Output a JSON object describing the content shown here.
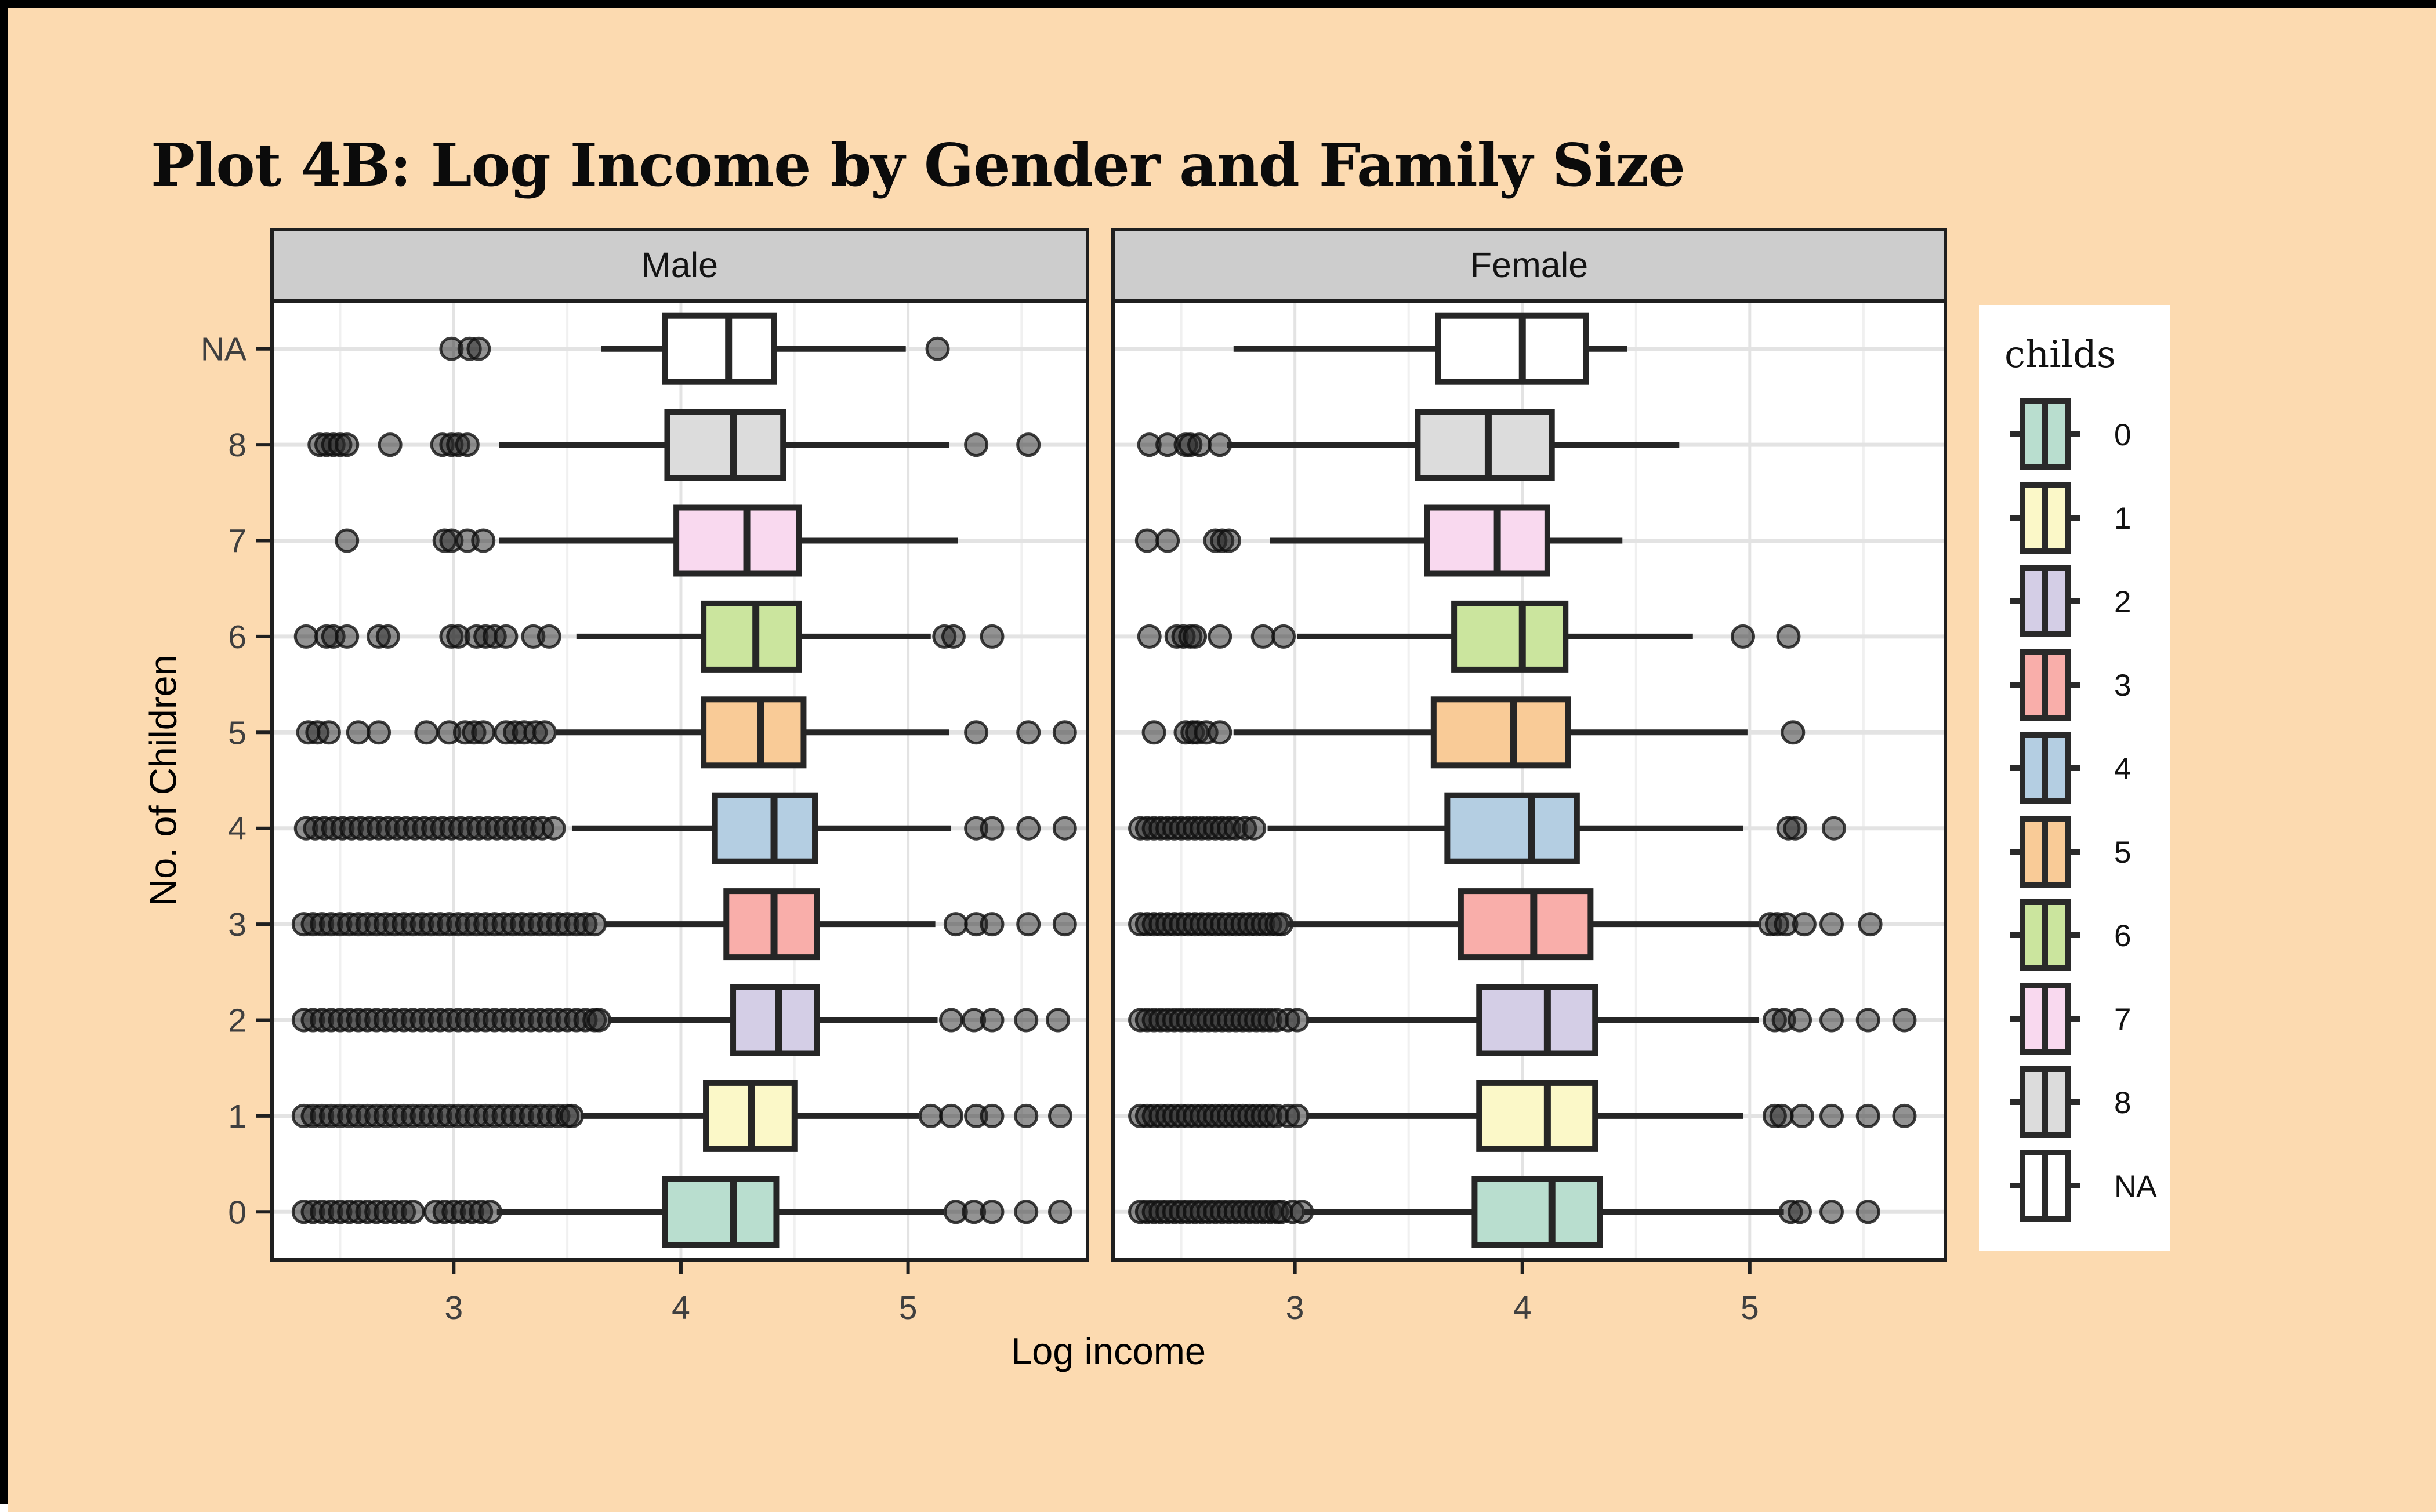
{
  "title": "Plot 4B: Log Income by Gender and Family Size",
  "axes": {
    "x_title": "Log income",
    "y_title": "No. of Children",
    "x_tick_labels": [
      "3",
      "4",
      "5"
    ],
    "y_tick_labels_top_to_bottom": [
      "NA",
      "8",
      "7",
      "6",
      "5",
      "4",
      "3",
      "2",
      "1",
      "0"
    ]
  },
  "legend": {
    "title": "childs",
    "items": [
      {
        "label": "0",
        "color": "#B9DECF"
      },
      {
        "label": "1",
        "color": "#FBF8C8"
      },
      {
        "label": "2",
        "color": "#D4CEE6"
      },
      {
        "label": "3",
        "color": "#F9AEAA"
      },
      {
        "label": "4",
        "color": "#B4CEE2"
      },
      {
        "label": "5",
        "color": "#F9CB97"
      },
      {
        "label": "6",
        "color": "#CBE59E"
      },
      {
        "label": "7",
        "color": "#F9D9EF"
      },
      {
        "label": "8",
        "color": "#DCDCDC"
      },
      {
        "label": "NA",
        "color": "#FFFFFF"
      }
    ]
  },
  "style_colors": {
    "background": "#FCDAB0",
    "outer_border": "#000000",
    "panel_bg": "#FFFFFF",
    "panel_border": "#1F1F1F",
    "strip_fill": "#CDCDCD",
    "grid_major": "#E3E3E3",
    "grid_minor": "#F0F0F0",
    "box_stroke": "#262626",
    "tick_color": "#1F1F1F"
  },
  "chart_data": {
    "type": "boxplot",
    "orientation": "horizontal",
    "xlabel": "Log income",
    "ylabel": "No. of Children",
    "x_major_ticks": [
      3,
      4,
      5
    ],
    "x_minor_ticks": [
      2.5,
      3.5,
      4.5,
      5.5
    ],
    "categories_top_to_bottom": [
      "NA",
      "8",
      "7",
      "6",
      "5",
      "4",
      "3",
      "2",
      "1",
      "0"
    ],
    "facets": [
      {
        "name": "Male",
        "xlim": [
          2.2,
          5.79
        ],
        "rows": [
          {
            "childs": "NA",
            "whisker_lo": 3.65,
            "q1": 3.93,
            "median": 4.21,
            "q3": 4.41,
            "whisker_hi": 4.99,
            "outliers_low": [
              2.99,
              3.07,
              3.11
            ],
            "outliers_high": [
              5.13
            ]
          },
          {
            "childs": "8",
            "whisker_lo": 3.2,
            "q1": 3.94,
            "median": 4.23,
            "q3": 4.45,
            "whisker_hi": 5.18,
            "outliers_low": [
              2.41,
              2.44,
              2.47,
              2.5,
              2.53,
              2.72,
              2.95,
              2.99,
              3.02,
              3.06
            ],
            "outliers_high": [
              5.3,
              5.53
            ]
          },
          {
            "childs": "7",
            "whisker_lo": 3.2,
            "q1": 3.98,
            "median": 4.29,
            "q3": 4.52,
            "whisker_hi": 5.22,
            "outliers_low": [
              2.53,
              2.96,
              2.99,
              3.06,
              3.13
            ],
            "outliers_high": []
          },
          {
            "childs": "6",
            "whisker_lo": 3.54,
            "q1": 4.1,
            "median": 4.33,
            "q3": 4.52,
            "whisker_hi": 5.1,
            "outliers_low": [
              2.35,
              2.44,
              2.47,
              2.53,
              2.67,
              2.71,
              2.99,
              3.02,
              3.1,
              3.14,
              3.18,
              3.23,
              3.35,
              3.42
            ],
            "outliers_high": [
              5.16,
              5.2,
              5.37
            ]
          },
          {
            "childs": "5",
            "whisker_lo": 3.45,
            "q1": 4.1,
            "median": 4.35,
            "q3": 4.54,
            "whisker_hi": 5.18,
            "outliers_low": [
              2.36,
              2.4,
              2.45,
              2.58,
              2.67,
              2.88,
              2.98,
              3.05,
              3.09,
              3.13,
              3.23,
              3.27,
              3.31,
              3.36,
              3.4
            ],
            "outliers_high": [
              5.3,
              5.53,
              5.69
            ]
          },
          {
            "childs": "4",
            "whisker_lo": 3.52,
            "q1": 4.15,
            "median": 4.41,
            "q3": 4.59,
            "whisker_hi": 5.19,
            "outliers_low": [
              2.35,
              2.39,
              2.43,
              2.47,
              2.51,
              2.55,
              2.59,
              2.63,
              2.67,
              2.71,
              2.75,
              2.79,
              2.83,
              2.87,
              2.91,
              2.95,
              2.99,
              3.03,
              3.07,
              3.11,
              3.15,
              3.19,
              3.23,
              3.27,
              3.31,
              3.35,
              3.39,
              3.44
            ],
            "outliers_high": [
              5.3,
              5.37,
              5.53,
              5.69
            ]
          },
          {
            "childs": "3",
            "whisker_lo": 3.66,
            "q1": 4.2,
            "median": 4.41,
            "q3": 4.6,
            "whisker_hi": 5.12,
            "outliers_low": [
              2.34,
              2.38,
              2.42,
              2.46,
              2.5,
              2.54,
              2.58,
              2.62,
              2.66,
              2.7,
              2.74,
              2.78,
              2.82,
              2.86,
              2.9,
              2.94,
              2.98,
              3.02,
              3.06,
              3.1,
              3.14,
              3.18,
              3.22,
              3.26,
              3.3,
              3.34,
              3.38,
              3.42,
              3.46,
              3.5,
              3.54,
              3.58,
              3.62
            ],
            "outliers_high": [
              5.21,
              5.3,
              5.37,
              5.53,
              5.69
            ]
          },
          {
            "childs": "2",
            "whisker_lo": 3.68,
            "q1": 4.23,
            "median": 4.43,
            "q3": 4.6,
            "whisker_hi": 5.13,
            "outliers_low": [
              2.34,
              2.38,
              2.42,
              2.46,
              2.5,
              2.54,
              2.58,
              2.62,
              2.66,
              2.7,
              2.74,
              2.78,
              2.82,
              2.86,
              2.9,
              2.94,
              2.98,
              3.02,
              3.06,
              3.1,
              3.14,
              3.18,
              3.22,
              3.26,
              3.3,
              3.34,
              3.38,
              3.42,
              3.46,
              3.5,
              3.54,
              3.58,
              3.62,
              3.64
            ],
            "outliers_high": [
              5.19,
              5.29,
              5.37,
              5.52,
              5.66
            ]
          },
          {
            "childs": "1",
            "whisker_lo": 3.56,
            "q1": 4.11,
            "median": 4.31,
            "q3": 4.5,
            "whisker_hi": 5.05,
            "outliers_low": [
              2.34,
              2.38,
              2.42,
              2.46,
              2.5,
              2.54,
              2.58,
              2.62,
              2.66,
              2.7,
              2.74,
              2.78,
              2.82,
              2.86,
              2.9,
              2.94,
              2.98,
              3.02,
              3.06,
              3.1,
              3.14,
              3.18,
              3.22,
              3.26,
              3.3,
              3.34,
              3.38,
              3.42,
              3.46,
              3.5,
              3.52
            ],
            "outliers_high": [
              5.1,
              5.19,
              5.3,
              5.37,
              5.52,
              5.67
            ]
          },
          {
            "childs": "0",
            "whisker_lo": 3.19,
            "q1": 3.93,
            "median": 4.23,
            "q3": 4.42,
            "whisker_hi": 5.16,
            "outliers_low": [
              2.34,
              2.38,
              2.42,
              2.46,
              2.5,
              2.54,
              2.58,
              2.62,
              2.66,
              2.7,
              2.74,
              2.78,
              2.82,
              2.92,
              2.96,
              3.0,
              3.04,
              3.08,
              3.12,
              3.16
            ],
            "outliers_high": [
              5.21,
              5.29,
              5.37,
              5.52,
              5.67
            ]
          }
        ]
      },
      {
        "name": "Female",
        "xlim": [
          2.2,
          5.86
        ],
        "rows": [
          {
            "childs": "NA",
            "whisker_lo": 2.73,
            "q1": 3.63,
            "median": 4.0,
            "q3": 4.28,
            "whisker_hi": 4.46,
            "outliers_low": [],
            "outliers_high": []
          },
          {
            "childs": "8",
            "whisker_lo": 2.7,
            "q1": 3.54,
            "median": 3.85,
            "q3": 4.13,
            "whisker_hi": 4.69,
            "outliers_low": [
              2.36,
              2.44,
              2.52,
              2.54,
              2.58,
              2.67
            ],
            "outliers_high": []
          },
          {
            "childs": "7",
            "whisker_lo": 2.89,
            "q1": 3.58,
            "median": 3.89,
            "q3": 4.11,
            "whisker_hi": 4.44,
            "outliers_low": [
              2.35,
              2.44,
              2.65,
              2.68,
              2.71
            ],
            "outliers_high": []
          },
          {
            "childs": "6",
            "whisker_lo": 3.01,
            "q1": 3.7,
            "median": 4.0,
            "q3": 4.19,
            "whisker_hi": 4.75,
            "outliers_low": [
              2.36,
              2.48,
              2.51,
              2.54,
              2.56,
              2.67,
              2.86,
              2.95
            ],
            "outliers_high": [
              4.97,
              5.17
            ]
          },
          {
            "childs": "5",
            "whisker_lo": 2.73,
            "q1": 3.61,
            "median": 3.96,
            "q3": 4.2,
            "whisker_hi": 4.99,
            "outliers_low": [
              2.38,
              2.52,
              2.55,
              2.57,
              2.61,
              2.67
            ],
            "outliers_high": [
              5.19
            ]
          },
          {
            "childs": "4",
            "whisker_lo": 2.88,
            "q1": 3.67,
            "median": 4.04,
            "q3": 4.24,
            "whisker_hi": 4.97,
            "outliers_low": [
              2.32,
              2.35,
              2.38,
              2.41,
              2.44,
              2.47,
              2.5,
              2.53,
              2.56,
              2.59,
              2.62,
              2.65,
              2.68,
              2.71,
              2.74,
              2.78,
              2.82
            ],
            "outliers_high": [
              5.17,
              5.2,
              5.37
            ]
          },
          {
            "childs": "3",
            "whisker_lo": 2.97,
            "q1": 3.73,
            "median": 4.05,
            "q3": 4.3,
            "whisker_hi": 5.04,
            "outliers_low": [
              2.32,
              2.35,
              2.38,
              2.41,
              2.44,
              2.47,
              2.5,
              2.53,
              2.56,
              2.59,
              2.62,
              2.65,
              2.68,
              2.71,
              2.74,
              2.77,
              2.8,
              2.83,
              2.86,
              2.89,
              2.92,
              2.94
            ],
            "outliers_high": [
              5.09,
              5.12,
              5.16,
              5.24,
              5.36,
              5.53
            ]
          },
          {
            "childs": "2",
            "whisker_lo": 3.05,
            "q1": 3.81,
            "median": 4.11,
            "q3": 4.32,
            "whisker_hi": 5.04,
            "outliers_low": [
              2.32,
              2.35,
              2.38,
              2.41,
              2.44,
              2.47,
              2.5,
              2.53,
              2.56,
              2.59,
              2.62,
              2.65,
              2.68,
              2.71,
              2.74,
              2.77,
              2.8,
              2.83,
              2.86,
              2.89,
              2.92,
              2.97,
              3.01
            ],
            "outliers_high": [
              5.11,
              5.15,
              5.22,
              5.36,
              5.52,
              5.68
            ]
          },
          {
            "childs": "1",
            "whisker_lo": 3.05,
            "q1": 3.81,
            "median": 4.11,
            "q3": 4.32,
            "whisker_hi": 4.97,
            "outliers_low": [
              2.32,
              2.35,
              2.38,
              2.41,
              2.44,
              2.47,
              2.5,
              2.53,
              2.56,
              2.59,
              2.62,
              2.65,
              2.68,
              2.71,
              2.74,
              2.77,
              2.8,
              2.83,
              2.86,
              2.89,
              2.92,
              2.97,
              3.01
            ],
            "outliers_high": [
              5.11,
              5.14,
              5.23,
              5.36,
              5.52,
              5.68
            ]
          },
          {
            "childs": "0",
            "whisker_lo": 3.04,
            "q1": 3.79,
            "median": 4.13,
            "q3": 4.34,
            "whisker_hi": 5.15,
            "outliers_low": [
              2.32,
              2.35,
              2.38,
              2.41,
              2.44,
              2.47,
              2.5,
              2.53,
              2.56,
              2.59,
              2.62,
              2.65,
              2.68,
              2.71,
              2.74,
              2.77,
              2.8,
              2.83,
              2.86,
              2.89,
              2.92,
              2.94,
              2.99,
              3.03
            ],
            "outliers_high": [
              5.18,
              5.22,
              5.36,
              5.52
            ]
          }
        ]
      }
    ]
  }
}
